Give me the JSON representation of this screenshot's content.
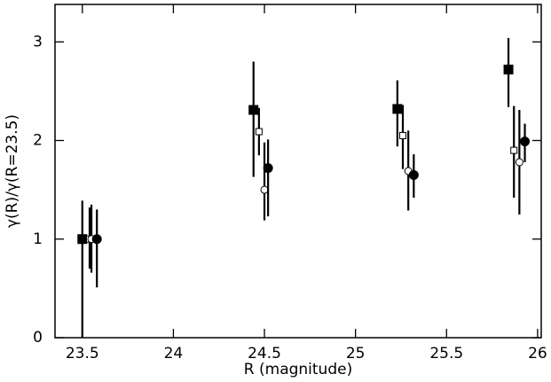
{
  "chart_data": {
    "type": "scatter",
    "x_label": "R (magnitude)",
    "y_label": "γ(R)/γ(R=23.5)",
    "xlim": [
      23.35,
      26.02
    ],
    "ylim": [
      0,
      3.38
    ],
    "xticks": [
      23.5,
      24,
      24.5,
      25,
      25.5,
      26
    ],
    "yticks": [
      0,
      1,
      2,
      3
    ],
    "series": [
      {
        "marker": "square",
        "filled": true,
        "color": "#000000",
        "x": [
          23.5,
          24.44,
          25.23,
          25.84
        ],
        "values": [
          1.0,
          2.31,
          2.32,
          2.72
        ],
        "lower": [
          0,
          1.63,
          1.94,
          2.34
        ],
        "upper": [
          1.39,
          2.8,
          2.61,
          3.04
        ]
      },
      {
        "marker": "square",
        "filled": false,
        "color": "#000000",
        "x": [
          23.54,
          24.47,
          25.26,
          25.87
        ],
        "values": [
          1.0,
          2.09,
          2.05,
          1.9
        ],
        "lower": [
          0.7,
          1.85,
          1.71,
          1.42
        ],
        "upper": [
          1.32,
          2.33,
          2.36,
          2.35
        ]
      },
      {
        "marker": "circle",
        "filled": false,
        "color": "#000000",
        "x": [
          23.55,
          24.5,
          25.29,
          25.9
        ],
        "values": [
          1.0,
          1.5,
          1.69,
          1.78
        ],
        "lower": [
          0.66,
          1.19,
          1.29,
          1.25
        ],
        "upper": [
          1.35,
          1.98,
          2.1,
          2.31
        ]
      },
      {
        "marker": "circle",
        "filled": true,
        "color": "#000000",
        "x": [
          23.58,
          24.52,
          25.32,
          25.93
        ],
        "values": [
          1.0,
          1.72,
          1.65,
          1.99
        ],
        "lower": [
          0.51,
          1.23,
          1.42,
          1.78
        ],
        "upper": [
          1.3,
          2.01,
          1.86,
          2.17
        ]
      }
    ]
  }
}
